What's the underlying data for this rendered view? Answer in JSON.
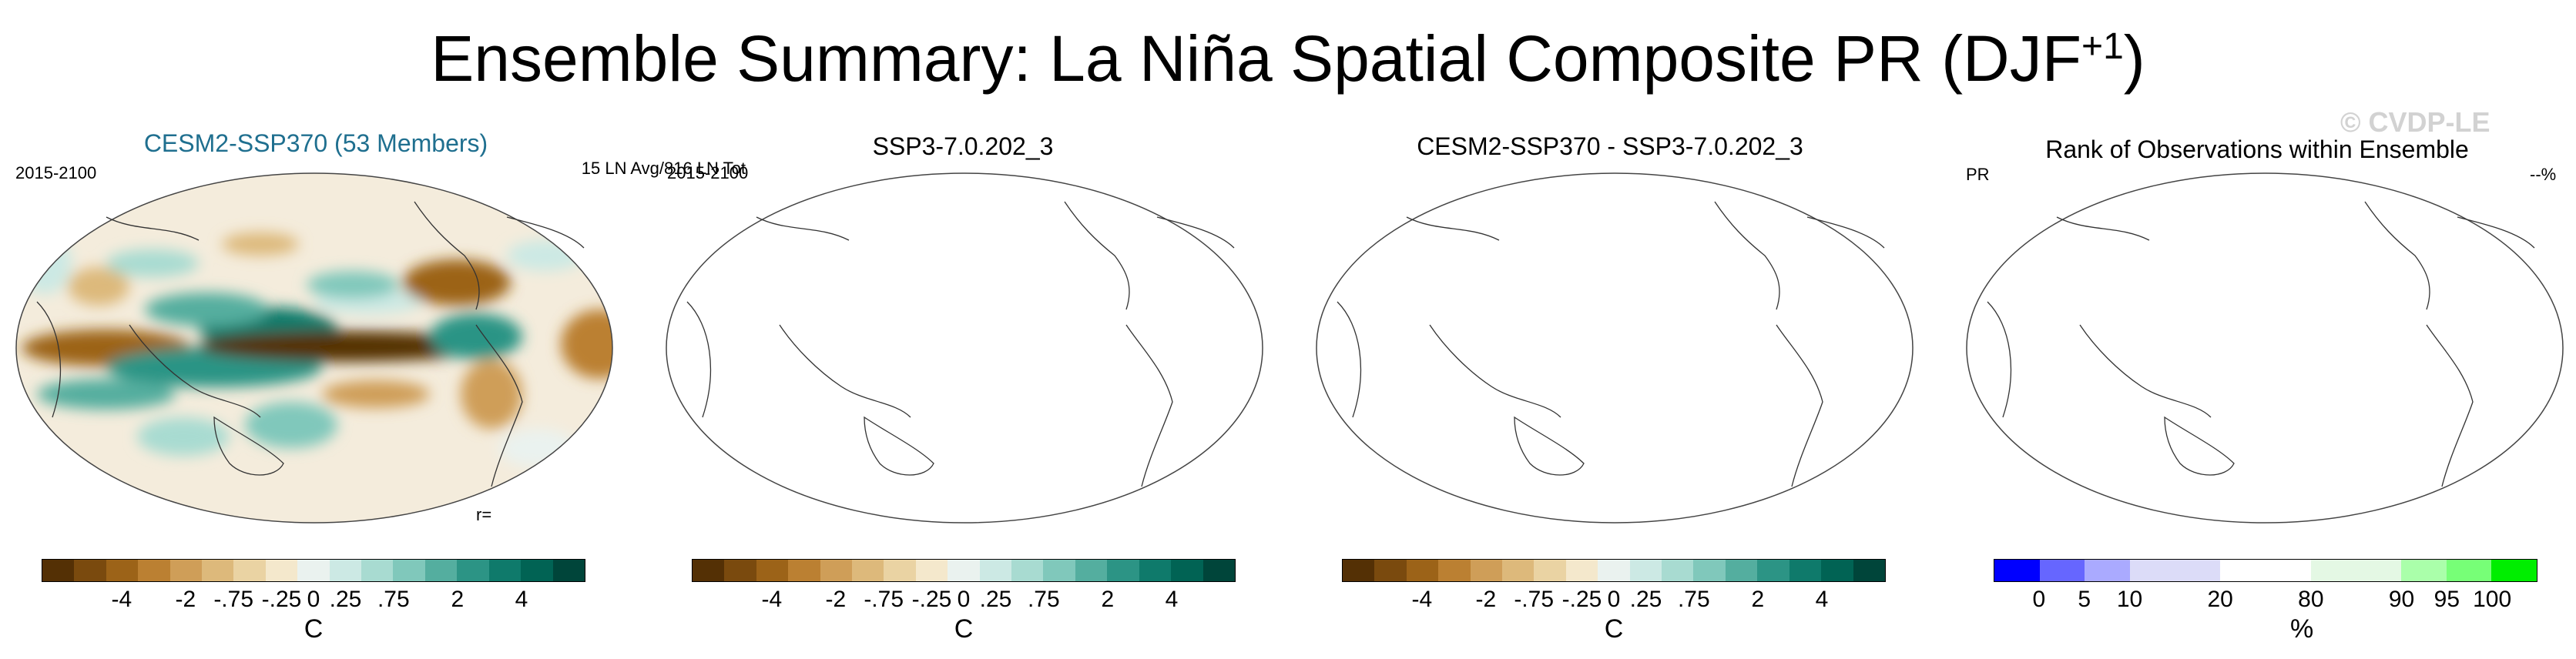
{
  "title": {
    "main": "Ensemble Summary: La Niña Spatial Composite PR (DJF",
    "sup": "+1",
    "close": ")"
  },
  "watermark": "© CVDP-LE",
  "panels": [
    {
      "title": "CESM2-SSP370 (53 Members)",
      "left_label": "2015-2100",
      "right_label": "15 LN Avg/816 LN Tot",
      "bottom_label": "r=",
      "filled": true
    },
    {
      "title": "SSP3-7.0.202_3",
      "left_label": "2015-2100",
      "right_label": "",
      "bottom_label": "",
      "filled": false
    },
    {
      "title": "CESM2-SSP370 - SSP3-7.0.202_3",
      "left_label": "",
      "right_label": "",
      "bottom_label": "",
      "filled": false
    },
    {
      "title": "Rank of Observations within Ensemble",
      "left_label": "PR",
      "right_label": "--%",
      "bottom_label": "",
      "filled": false
    }
  ],
  "colorbars": {
    "diverging": {
      "colors": [
        "#543005",
        "#7a4a0e",
        "#9c6318",
        "#bb8032",
        "#cf9e58",
        "#ddb97b",
        "#ead3a3",
        "#f4e8cc",
        "#eaf2ef",
        "#cce9e4",
        "#a8dbd1",
        "#80c8bb",
        "#54ae9f",
        "#2c9485",
        "#0f7a6b",
        "#016354",
        "#00453a"
      ],
      "labels": [
        "-4",
        "-2",
        "-.75",
        "-.25",
        "0",
        ".25",
        ".75",
        "2",
        "4"
      ],
      "unit": "C"
    },
    "rank": {
      "colors": [
        "#0000ff",
        "#6666ff",
        "#aaaaff",
        "#dcdcf8",
        "#dcdcf8",
        "#ffffff",
        "#ffffff",
        "#e4f8e4",
        "#e4f8e4",
        "#aaffaa",
        "#77ff77",
        "#00ee00"
      ],
      "labels": [
        "0",
        "5",
        "10",
        "20",
        "80",
        "90",
        "95",
        "100"
      ],
      "unit": "%"
    }
  },
  "chart_data": [
    {
      "type": "heatmap",
      "title": "CESM2-SSP370 (53 Members)",
      "period": "2015-2100",
      "annotation": "15 LN Avg/816 LN Tot",
      "units": "C",
      "levels": [
        -4,
        -2,
        -0.75,
        -0.25,
        0,
        0.25,
        0.75,
        2,
        4
      ],
      "note": "La Niña composite DJF+1 precipitation: strong negative anomaly along equatorial central Pacific, positive anomalies over Maritime Continent and off-equatorial bands"
    },
    {
      "type": "heatmap",
      "title": "SSP3-7.0.202_3",
      "period": "2015-2100",
      "units": "C",
      "levels": [
        -4,
        -2,
        -0.75,
        -0.25,
        0,
        0.25,
        0.75,
        2,
        4
      ]
    },
    {
      "type": "heatmap",
      "title": "CESM2-SSP370 - SSP3-7.0.202_3",
      "units": "C",
      "levels": [
        -4,
        -2,
        -0.75,
        -0.25,
        0,
        0.25,
        0.75,
        2,
        4
      ]
    },
    {
      "type": "heatmap",
      "title": "Rank of Observations within Ensemble",
      "variable": "PR",
      "units": "%",
      "levels": [
        0,
        5,
        10,
        20,
        80,
        90,
        95,
        100
      ]
    }
  ]
}
